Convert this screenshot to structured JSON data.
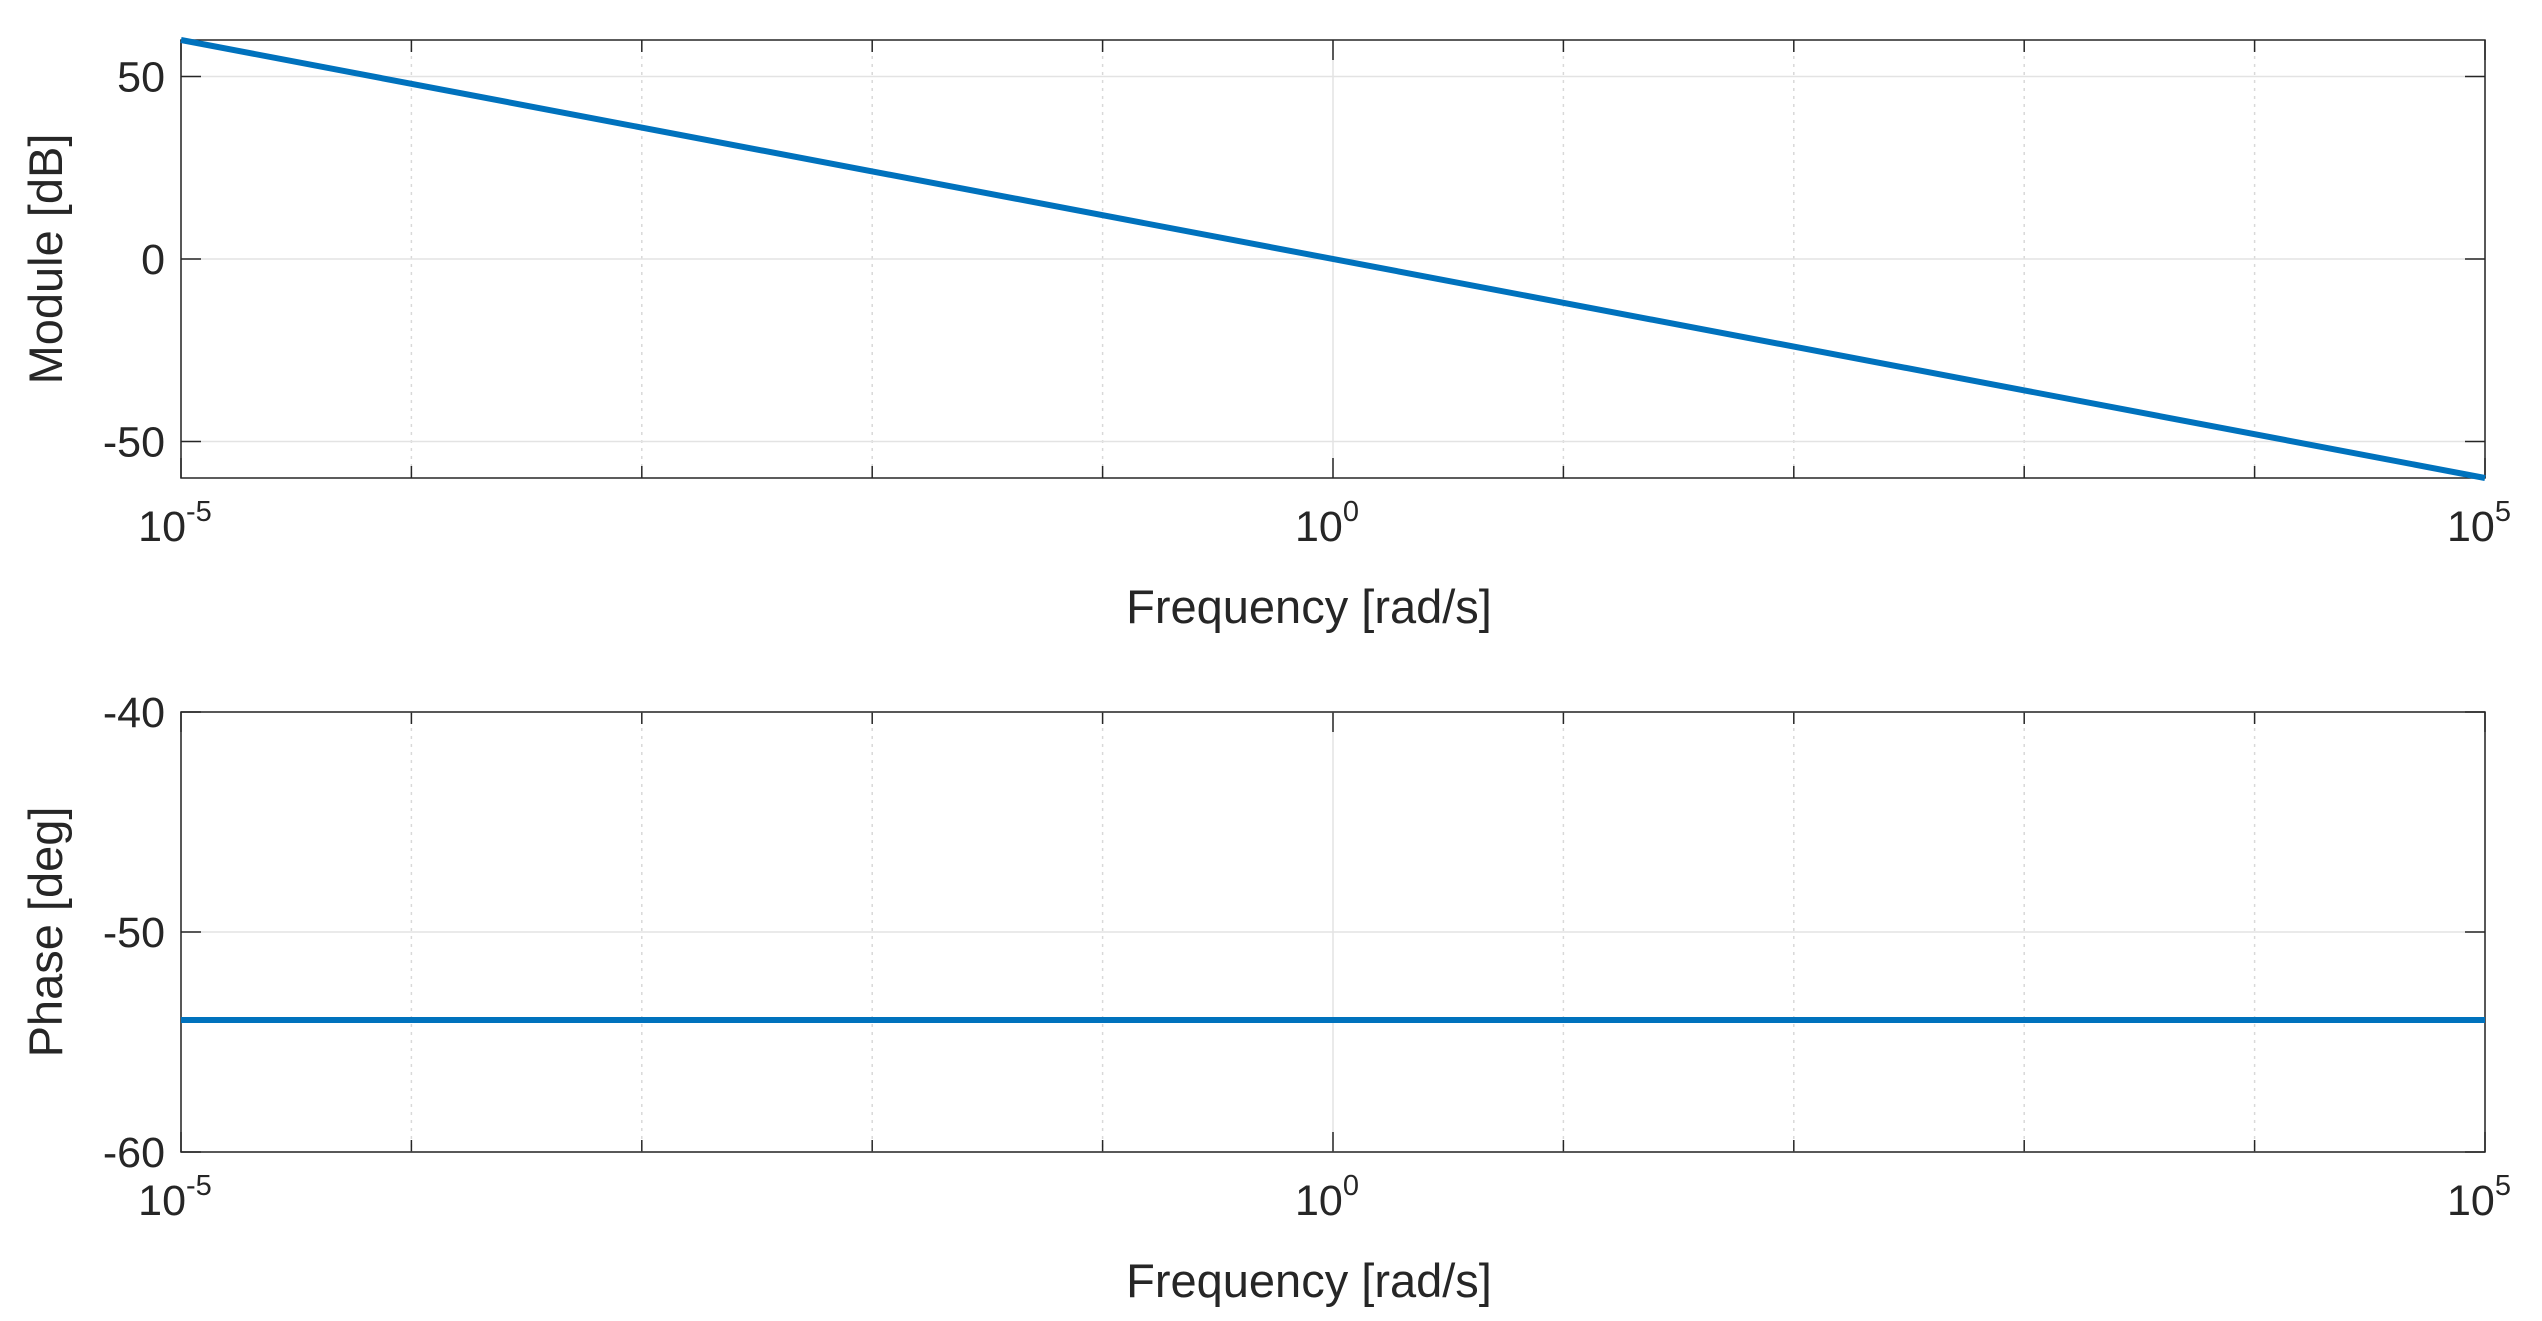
{
  "chart_data": [
    {
      "type": "line",
      "title": "",
      "xlabel": "Frequency [rad/s]",
      "ylabel": "Module [dB]",
      "xscale": "log",
      "xlim": [
        1e-05,
        100000
      ],
      "ylim": [
        -60,
        60
      ],
      "grid": true,
      "x_ticks": [
        {
          "base": "10",
          "exp": "-5",
          "value": 1e-05
        },
        {
          "base": "10",
          "exp": "0",
          "value": 1
        },
        {
          "base": "10",
          "exp": "5",
          "value": 100000
        }
      ],
      "x_minor_gridlines": [
        0.0001,
        0.001,
        0.01,
        0.1,
        10,
        100,
        1000,
        10000
      ],
      "y_ticks": [
        {
          "label": "50",
          "value": 50
        },
        {
          "label": "0",
          "value": 0
        },
        {
          "label": "-50",
          "value": -50
        }
      ],
      "series": [
        {
          "color": "#0072bd",
          "x": [
            1e-05,
            100000
          ],
          "y": [
            60,
            -60
          ]
        }
      ]
    },
    {
      "type": "line",
      "title": "",
      "xlabel": "Frequency [rad/s]",
      "ylabel": "Phase [deg]",
      "xscale": "log",
      "xlim": [
        1e-05,
        100000
      ],
      "ylim": [
        -60,
        -40
      ],
      "grid": true,
      "x_ticks": [
        {
          "base": "10",
          "exp": "-5",
          "value": 1e-05
        },
        {
          "base": "10",
          "exp": "0",
          "value": 1
        },
        {
          "base": "10",
          "exp": "5",
          "value": 100000
        }
      ],
      "x_minor_gridlines": [
        0.0001,
        0.001,
        0.01,
        0.1,
        10,
        100,
        1000,
        10000
      ],
      "y_ticks": [
        {
          "label": "-40",
          "value": -40
        },
        {
          "label": "-50",
          "value": -50
        },
        {
          "label": "-60",
          "value": -60
        }
      ],
      "series": [
        {
          "color": "#0072bd",
          "x": [
            1e-05,
            100000
          ],
          "y": [
            -54,
            -54
          ]
        }
      ]
    }
  ]
}
